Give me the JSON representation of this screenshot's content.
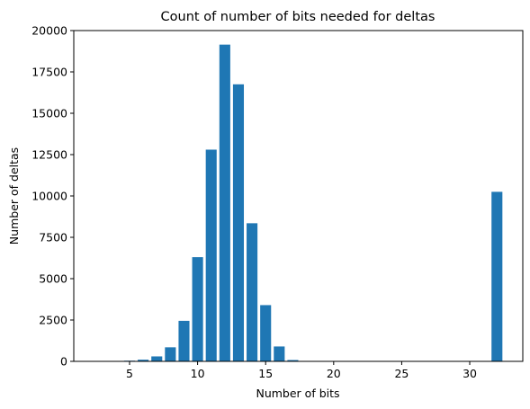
{
  "chart_data": {
    "type": "bar",
    "title": "Count of number of bits needed for deltas",
    "xlabel": "Number of bits",
    "ylabel": "Number of deltas",
    "xlim": [
      0.9,
      33.9
    ],
    "ylim": [
      0,
      20000
    ],
    "xticks": [
      5,
      10,
      15,
      20,
      25,
      30
    ],
    "yticks": [
      0,
      2500,
      5000,
      7500,
      10000,
      12500,
      15000,
      17500,
      20000
    ],
    "grid": false,
    "bar_color": "#1f77b4",
    "x": [
      5,
      6,
      7,
      8,
      9,
      10,
      11,
      12,
      13,
      14,
      15,
      16,
      17,
      32
    ],
    "values": [
      40,
      100,
      300,
      850,
      2450,
      6300,
      12800,
      19150,
      16750,
      8350,
      3400,
      900,
      80,
      10250
    ]
  }
}
